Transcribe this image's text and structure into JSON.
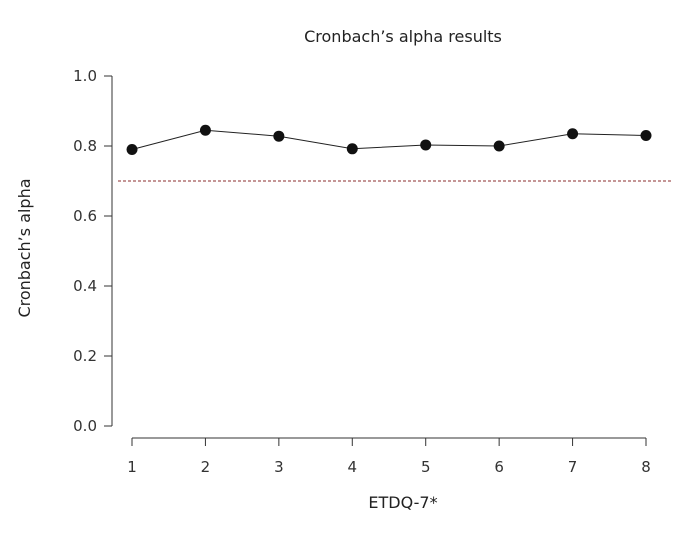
{
  "chart_data": {
    "type": "line",
    "title": "Cronbach’s alpha results",
    "xlabel": "ETDQ-7*",
    "ylabel": "Cronbach’s alpha",
    "categories": [
      "1",
      "2",
      "3",
      "4",
      "5",
      "6",
      "7",
      "8"
    ],
    "values": [
      0.79,
      0.845,
      0.828,
      0.792,
      0.803,
      0.8,
      0.835,
      0.83
    ],
    "ylim": [
      0,
      1
    ],
    "yticks": [
      "0.0",
      "0.2",
      "0.4",
      "0.6",
      "0.8",
      "1.0"
    ],
    "reference_line": {
      "y": 0.7,
      "style": "dashed",
      "color": "#8b2e2e"
    },
    "colors": {
      "line": "#222222",
      "markers": "#111111"
    },
    "grid": false,
    "legend": false
  }
}
